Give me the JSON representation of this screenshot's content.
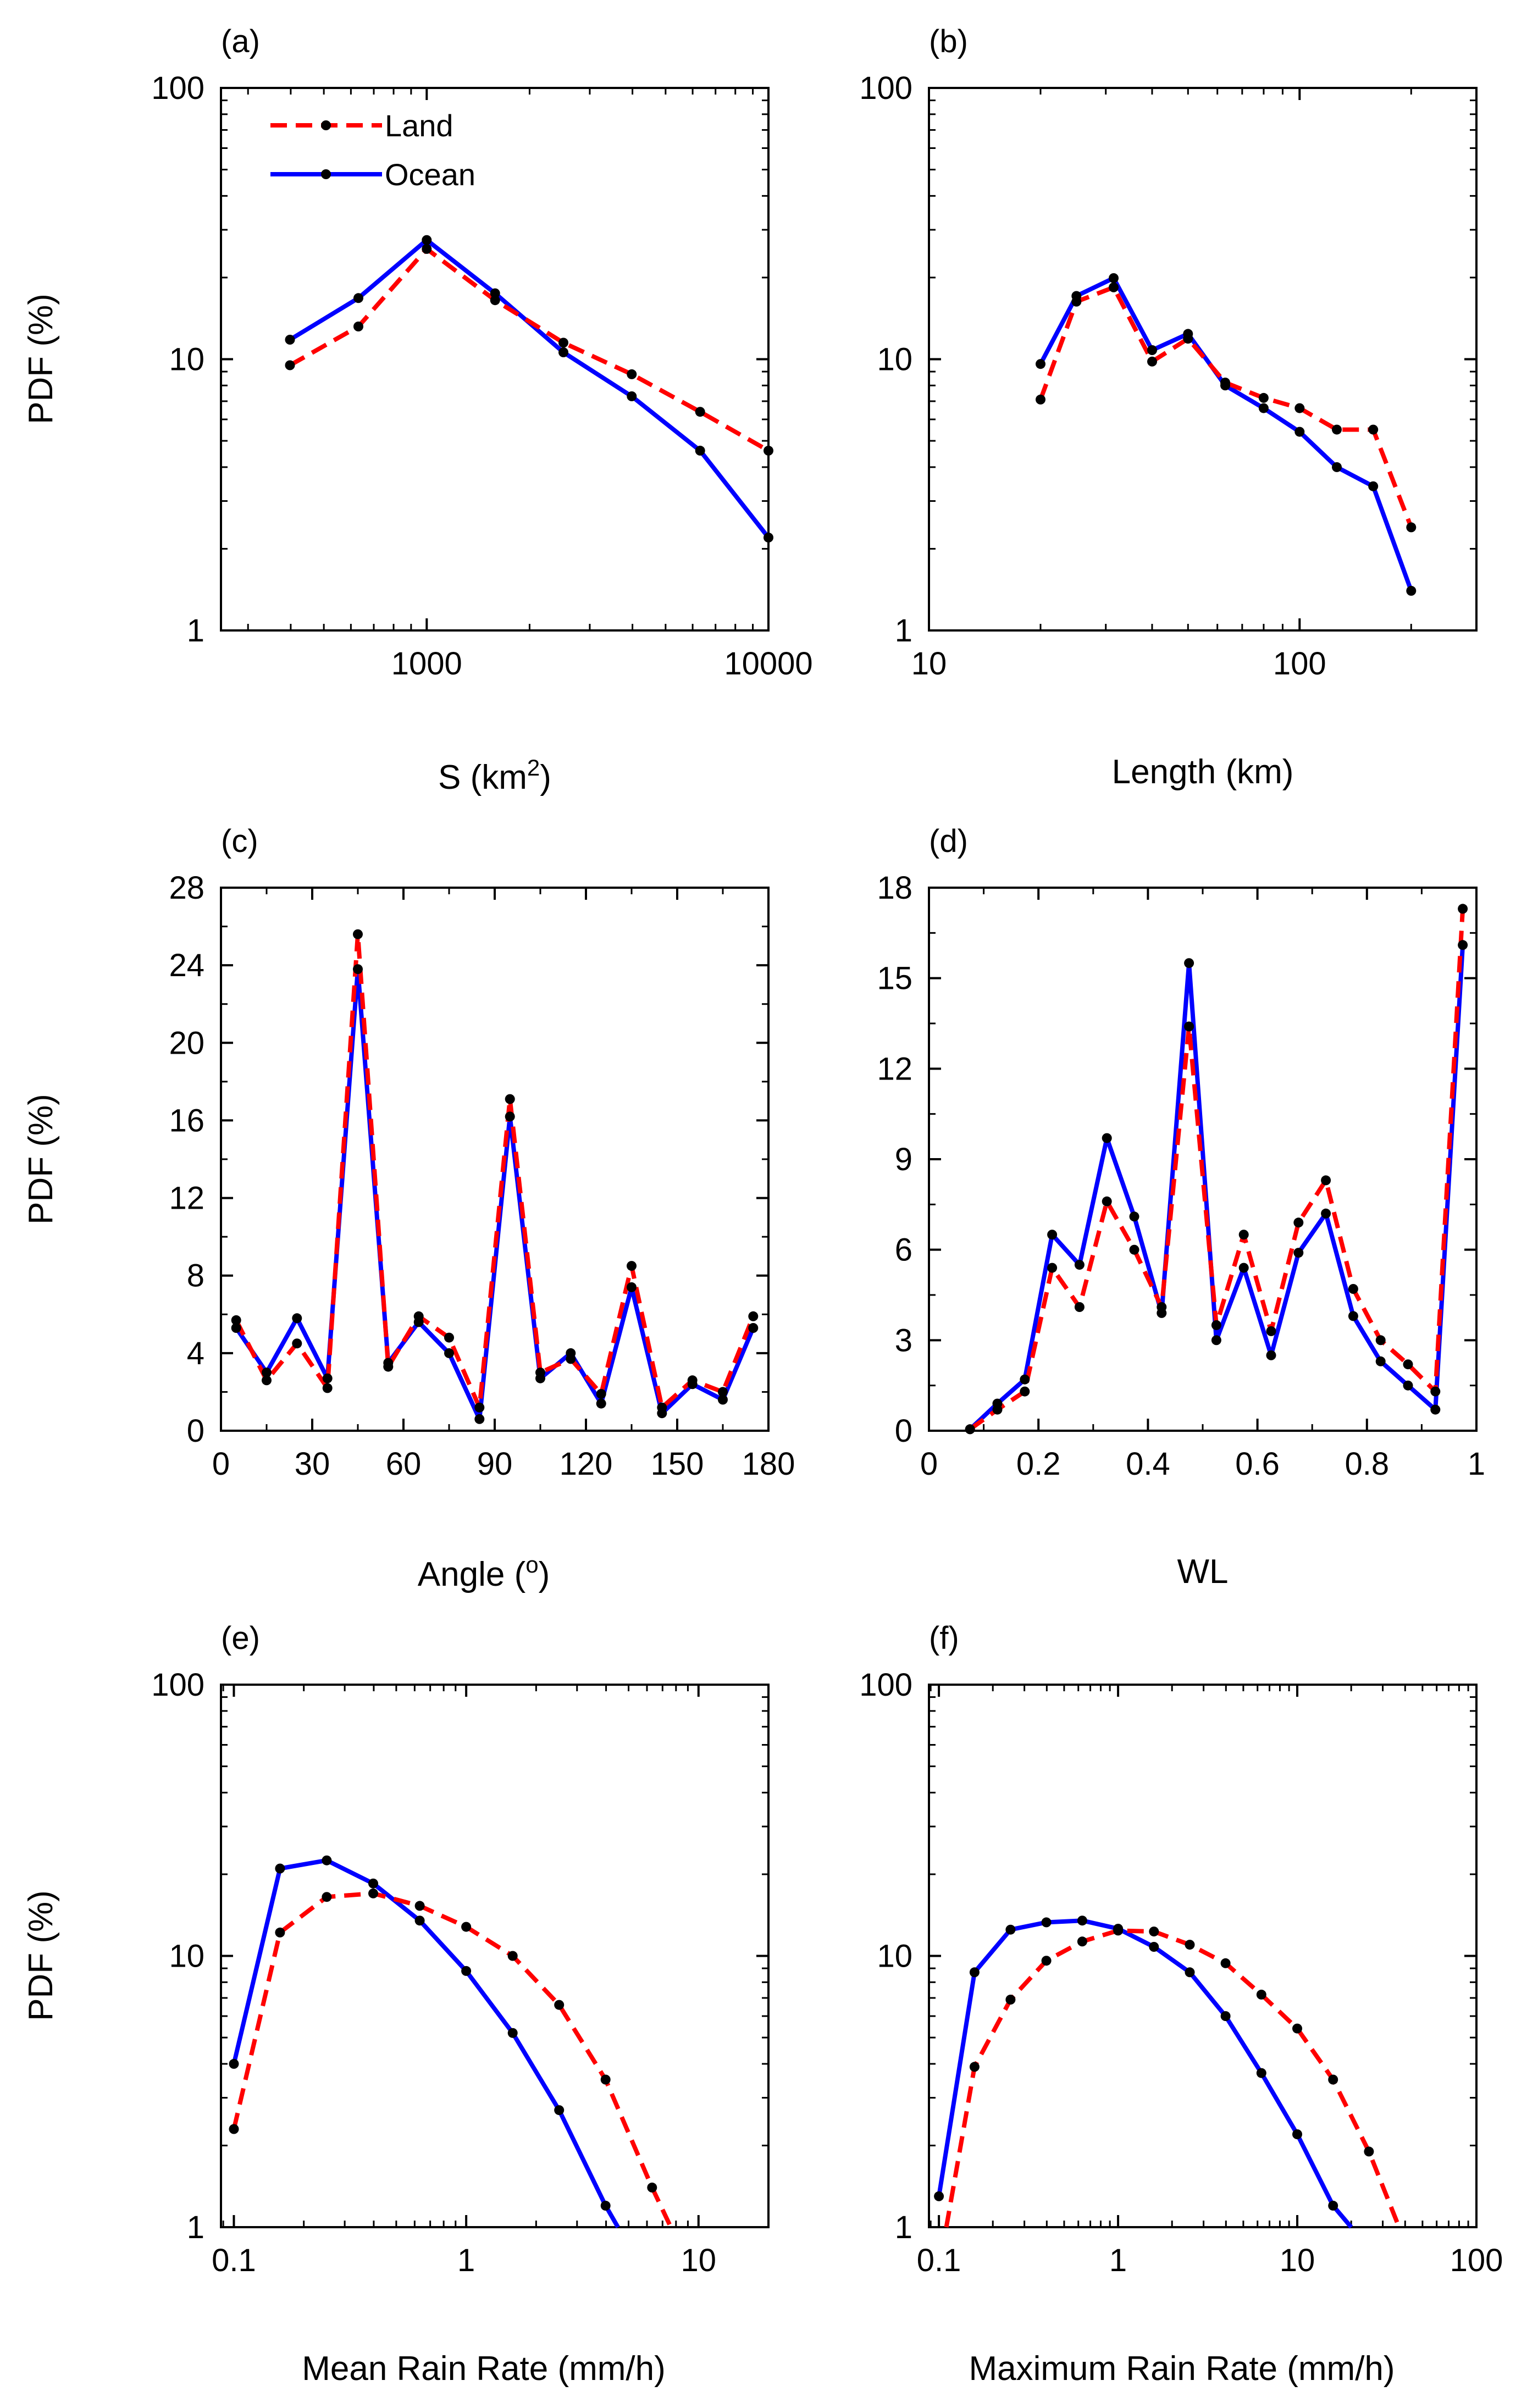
{
  "colors": {
    "land": "#ff0000",
    "ocean": "#0000ff",
    "marker": "#000000",
    "axis": "#000000"
  },
  "legend": {
    "land": "Land",
    "ocean": "Ocean"
  },
  "chart_data": [
    {
      "id": "a",
      "panel_label": "(a)",
      "type": "line",
      "xscale": "log",
      "yscale": "log",
      "xlim": [
        250,
        10000
      ],
      "ylim": [
        1,
        100
      ],
      "xticks": [
        1000,
        10000
      ],
      "xtick_labels": [
        "1000",
        "10000"
      ],
      "yticks": [
        1,
        10,
        100
      ],
      "ytick_labels": [
        "1",
        "10",
        "100"
      ],
      "xlabel": "S (km",
      "xlabel_sup": "2",
      "xlabel_tail": ")",
      "ylabel": "PDF (%)",
      "legend": true,
      "series": [
        {
          "name": "Land",
          "x": [
            398,
            631,
            1000,
            1585,
            2512,
            3981,
            6310,
            10000
          ],
          "y": [
            9.5,
            13.2,
            25.5,
            16.5,
            11.5,
            8.8,
            6.4,
            4.6
          ]
        },
        {
          "name": "Ocean",
          "x": [
            398,
            631,
            1000,
            1585,
            2512,
            3981,
            6310,
            10000
          ],
          "y": [
            11.8,
            16.8,
            27.5,
            17.5,
            10.6,
            7.3,
            4.6,
            2.2
          ]
        }
      ]
    },
    {
      "id": "b",
      "panel_label": "(b)",
      "type": "line",
      "xscale": "log",
      "yscale": "log",
      "xlim": [
        10,
        300
      ],
      "ylim": [
        1,
        100
      ],
      "xticks": [
        10,
        100
      ],
      "xtick_labels": [
        "10",
        "100"
      ],
      "yticks": [
        1,
        10,
        100
      ],
      "ytick_labels": [
        "1",
        "10",
        "100"
      ],
      "xlabel": "Length (km)",
      "ylabel": "",
      "series": [
        {
          "name": "Land",
          "x": [
            20,
            25,
            31.5,
            40,
            50,
            63,
            80,
            100,
            126,
            158,
            200
          ],
          "y": [
            7.1,
            16.3,
            18.4,
            9.8,
            11.9,
            8.2,
            7.2,
            6.6,
            5.5,
            5.5,
            2.4
          ]
        },
        {
          "name": "Ocean",
          "x": [
            20,
            25,
            31.5,
            40,
            50,
            63,
            80,
            100,
            126,
            158,
            200
          ],
          "y": [
            9.6,
            17.1,
            19.9,
            10.8,
            12.4,
            8.0,
            6.6,
            5.4,
            4.0,
            3.4,
            1.4
          ]
        }
      ]
    },
    {
      "id": "c",
      "panel_label": "(c)",
      "type": "line",
      "xscale": "linear",
      "yscale": "linear",
      "xlim": [
        0,
        180
      ],
      "ylim": [
        0,
        28
      ],
      "xticks": [
        0,
        30,
        60,
        90,
        120,
        150,
        180
      ],
      "xtick_labels": [
        "0",
        "30",
        "60",
        "90",
        "120",
        "150",
        "180"
      ],
      "yticks": [
        0,
        4,
        8,
        12,
        16,
        20,
        24,
        28
      ],
      "ytick_labels": [
        "0",
        "4",
        "8",
        "12",
        "16",
        "20",
        "24",
        "28"
      ],
      "xlabel": "Angle (",
      "xlabel_sup": "o",
      "xlabel_tail": ")",
      "ylabel": "PDF (%)",
      "series": [
        {
          "name": "Land",
          "x": [
            5,
            15,
            25,
            35,
            45,
            55,
            65,
            75,
            85,
            95,
            105,
            115,
            125,
            135,
            145,
            155,
            165,
            175
          ],
          "y": [
            5.7,
            2.6,
            4.5,
            2.2,
            25.6,
            3.3,
            5.9,
            4.8,
            1.2,
            17.1,
            3.0,
            3.7,
            1.9,
            8.5,
            1.2,
            2.6,
            2.0,
            5.9
          ]
        },
        {
          "name": "Ocean",
          "x": [
            5,
            15,
            25,
            35,
            45,
            55,
            65,
            75,
            85,
            95,
            105,
            115,
            125,
            135,
            145,
            155,
            165,
            175
          ],
          "y": [
            5.3,
            3.0,
            5.8,
            2.7,
            23.8,
            3.5,
            5.6,
            4.0,
            0.6,
            16.2,
            2.7,
            4.0,
            1.4,
            7.4,
            0.9,
            2.4,
            1.6,
            5.3
          ]
        }
      ]
    },
    {
      "id": "d",
      "panel_label": "(d)",
      "type": "line",
      "xscale": "linear",
      "yscale": "linear",
      "xlim": [
        0,
        1
      ],
      "ylim": [
        0,
        18
      ],
      "xticks": [
        0,
        0.2,
        0.4,
        0.6,
        0.8,
        1
      ],
      "xtick_labels": [
        "0",
        "0.2",
        "0.4",
        "0.6",
        "0.8",
        "1"
      ],
      "yticks": [
        0,
        3,
        6,
        9,
        12,
        15,
        18
      ],
      "ytick_labels": [
        "0",
        "3",
        "6",
        "9",
        "12",
        "15",
        "18"
      ],
      "xlabel": "WL",
      "ylabel": "",
      "series": [
        {
          "name": "Land",
          "x": [
            0.075,
            0.125,
            0.175,
            0.225,
            0.275,
            0.325,
            0.375,
            0.425,
            0.475,
            0.525,
            0.575,
            0.625,
            0.675,
            0.725,
            0.775,
            0.825,
            0.875,
            0.925,
            0.975
          ],
          "y": [
            0.05,
            0.7,
            1.3,
            5.4,
            4.1,
            7.6,
            6.0,
            4.1,
            13.4,
            3.5,
            6.5,
            3.3,
            6.9,
            8.3,
            4.7,
            3.0,
            2.2,
            1.3,
            17.3
          ]
        },
        {
          "name": "Ocean",
          "x": [
            0.075,
            0.125,
            0.175,
            0.225,
            0.275,
            0.325,
            0.375,
            0.425,
            0.475,
            0.525,
            0.575,
            0.625,
            0.675,
            0.725,
            0.775,
            0.825,
            0.875,
            0.925,
            0.975
          ],
          "y": [
            0.05,
            0.9,
            1.7,
            6.5,
            5.5,
            9.7,
            7.1,
            3.9,
            15.5,
            3.0,
            5.4,
            2.5,
            5.9,
            7.2,
            3.8,
            2.3,
            1.5,
            0.7,
            16.1
          ]
        }
      ]
    },
    {
      "id": "e",
      "panel_label": "(e)",
      "type": "line",
      "xscale": "log",
      "yscale": "log",
      "xlim": [
        0.088,
        20
      ],
      "ylim": [
        1,
        100
      ],
      "xticks": [
        0.1,
        1,
        10
      ],
      "xtick_labels": [
        "0.1",
        "1",
        "10"
      ],
      "yticks": [
        1,
        10,
        100
      ],
      "ytick_labels": [
        "1",
        "10",
        "100"
      ],
      "xlabel": "Mean Rain Rate (mm/h)",
      "ylabel": "PDF (%)",
      "series": [
        {
          "name": "Land",
          "x": [
            0.1,
            0.158,
            0.251,
            0.398,
            0.631,
            1.0,
            1.585,
            2.512,
            3.981,
            6.31,
            7.6
          ],
          "y": [
            2.3,
            12.2,
            16.5,
            17.0,
            15.3,
            12.8,
            10.0,
            6.6,
            3.5,
            1.4,
            1.0
          ]
        },
        {
          "name": "Ocean",
          "x": [
            0.1,
            0.158,
            0.251,
            0.398,
            0.631,
            1.0,
            1.585,
            2.512,
            3.981,
            4.5
          ],
          "y": [
            4.0,
            21.0,
            22.5,
            18.5,
            13.5,
            8.8,
            5.2,
            2.7,
            1.2,
            1.0
          ]
        }
      ]
    },
    {
      "id": "f",
      "panel_label": "(f)",
      "type": "line",
      "xscale": "log",
      "yscale": "log",
      "xlim": [
        0.088,
        100
      ],
      "ylim": [
        1,
        100
      ],
      "xticks": [
        0.1,
        1,
        10,
        100
      ],
      "xtick_labels": [
        "0.1",
        "1",
        "10",
        "100"
      ],
      "yticks": [
        1,
        10,
        100
      ],
      "ytick_labels": [
        "1",
        "10",
        "100"
      ],
      "xlabel": "Maximum Rain Rate (mm/h)",
      "ylabel": "",
      "series": [
        {
          "name": "Land",
          "x": [
            0.11,
            0.158,
            0.251,
            0.398,
            0.631,
            1.0,
            1.585,
            2.512,
            3.981,
            6.31,
            10.0,
            15.85,
            25.12,
            37
          ],
          "y": [
            1.0,
            3.9,
            6.9,
            9.6,
            11.3,
            12.4,
            12.3,
            11.0,
            9.4,
            7.2,
            5.4,
            3.5,
            1.9,
            1.0
          ]
        },
        {
          "name": "Ocean",
          "x": [
            0.1,
            0.158,
            0.251,
            0.398,
            0.631,
            1.0,
            1.585,
            2.512,
            3.981,
            6.31,
            10.0,
            15.85,
            20
          ],
          "y": [
            1.3,
            8.7,
            12.5,
            13.3,
            13.5,
            12.6,
            10.8,
            8.7,
            6.0,
            3.7,
            2.2,
            1.2,
            1.0
          ]
        }
      ]
    }
  ]
}
